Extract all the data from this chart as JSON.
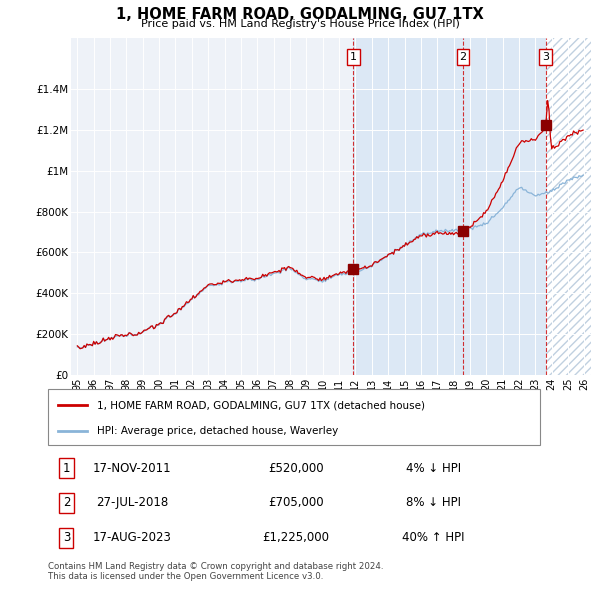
{
  "title": "1, HOME FARM ROAD, GODALMING, GU7 1TX",
  "subtitle": "Price paid vs. HM Land Registry's House Price Index (HPI)",
  "hpi_label": "HPI: Average price, detached house, Waverley",
  "property_label": "1, HOME FARM ROAD, GODALMING, GU7 1TX (detached house)",
  "hpi_color": "#8ab4d8",
  "property_color": "#cc0000",
  "sale_color": "#8b0000",
  "dashed_color": "#cc0000",
  "shade_color": "#dce8f5",
  "hatch_color": "#c0d0e0",
  "transactions": [
    {
      "num": 1,
      "date": "17-NOV-2011",
      "price": 520000,
      "pct": "4%",
      "dir": "↓",
      "x_year": 2011.88
    },
    {
      "num": 2,
      "date": "27-JUL-2018",
      "price": 705000,
      "pct": "8%",
      "dir": "↓",
      "x_year": 2018.57
    },
    {
      "num": 3,
      "date": "17-AUG-2023",
      "price": 1225000,
      "pct": "40%",
      "dir": "↑",
      "x_year": 2023.63
    }
  ],
  "ylim": [
    0,
    1650000
  ],
  "yticks": [
    0,
    200000,
    400000,
    600000,
    800000,
    1000000,
    1200000,
    1400000
  ],
  "ytick_labels": [
    "£0",
    "£200K",
    "£400K",
    "£600K",
    "£800K",
    "£1M",
    "£1.2M",
    "£1.4M"
  ],
  "xlim_start": 1994.6,
  "xlim_end": 2026.4,
  "footer": "Contains HM Land Registry data © Crown copyright and database right 2024.\nThis data is licensed under the Open Government Licence v3.0.",
  "background_color": "#ffffff",
  "plot_bg_color": "#eef2f8"
}
